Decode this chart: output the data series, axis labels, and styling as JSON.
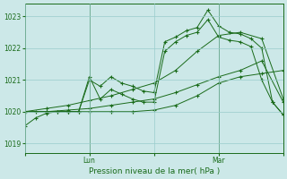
{
  "background_color": "#cce8e8",
  "grid_color": "#99cccc",
  "line_color": "#1a6b1a",
  "xlabel": "Pression niveau de la mer( hPa )",
  "ylim": [
    1018.7,
    1023.4
  ],
  "yticks": [
    1019,
    1020,
    1021,
    1022,
    1023
  ],
  "xlim": [
    0,
    96
  ],
  "xtick_labels": [
    "",
    "Lun",
    "",
    "Mar",
    ""
  ],
  "xtick_positions": [
    0,
    24,
    48,
    72,
    96
  ],
  "series": [
    {
      "x": [
        0,
        4,
        8,
        12,
        16,
        20,
        24,
        28,
        32,
        36,
        40,
        44,
        48,
        52,
        56,
        60,
        64,
        68,
        72,
        76,
        80,
        84,
        88,
        92,
        96
      ],
      "y": [
        1019.55,
        1019.8,
        1019.95,
        1020.0,
        1020.0,
        1020.0,
        1021.1,
        1020.4,
        1020.7,
        1020.55,
        1020.4,
        1020.3,
        1020.3,
        1021.9,
        1022.2,
        1022.4,
        1022.5,
        1022.9,
        1022.35,
        1022.25,
        1022.2,
        1022.05,
        1021.0,
        1020.3,
        1019.9
      ]
    },
    {
      "x": [
        0,
        8,
        16,
        24,
        32,
        40,
        48,
        56,
        64,
        72,
        80,
        88,
        96
      ],
      "y": [
        1020.0,
        1020.0,
        1020.0,
        1020.0,
        1020.0,
        1020.0,
        1020.05,
        1020.2,
        1020.5,
        1020.9,
        1021.1,
        1021.2,
        1021.3
      ]
    },
    {
      "x": [
        0,
        8,
        16,
        24,
        32,
        40,
        48,
        56,
        64,
        72,
        80,
        88,
        96
      ],
      "y": [
        1020.0,
        1020.1,
        1020.2,
        1020.35,
        1020.5,
        1020.7,
        1020.9,
        1021.3,
        1021.9,
        1022.4,
        1022.5,
        1022.3,
        1020.4
      ]
    },
    {
      "x": [
        0,
        4,
        8,
        12,
        16,
        20,
        24,
        28,
        32,
        36,
        40,
        44,
        48,
        52,
        56,
        60,
        64,
        68,
        72,
        76,
        80,
        84,
        88,
        92,
        96
      ],
      "y": [
        1020.0,
        1020.0,
        1020.0,
        1020.0,
        1020.0,
        1020.0,
        1021.0,
        1020.8,
        1021.1,
        1020.9,
        1020.8,
        1020.65,
        1020.6,
        1022.2,
        1022.35,
        1022.55,
        1022.65,
        1023.2,
        1022.7,
        1022.5,
        1022.45,
        1022.3,
        1022.0,
        1020.3,
        1019.9
      ]
    },
    {
      "x": [
        0,
        8,
        16,
        24,
        32,
        40,
        48,
        56,
        64,
        72,
        80,
        88,
        96
      ],
      "y": [
        1020.0,
        1020.0,
        1020.05,
        1020.1,
        1020.2,
        1020.3,
        1020.4,
        1020.6,
        1020.85,
        1021.1,
        1021.3,
        1021.6,
        1020.3
      ]
    }
  ]
}
